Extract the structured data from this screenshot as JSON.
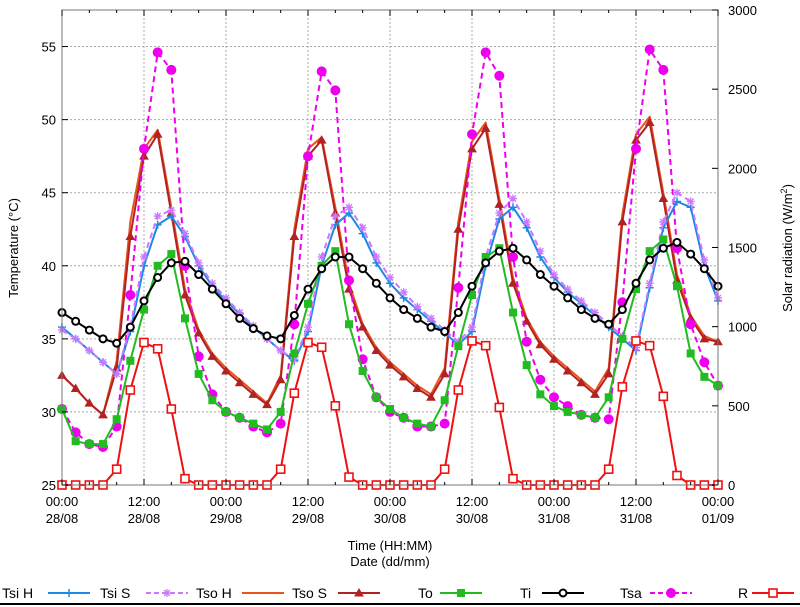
{
  "chart_data": {
    "type": "line",
    "title": "",
    "xlabel": "Time (HH:MM)\nDate (dd/mm)",
    "xlabel_lines": [
      "Time (HH:MM)",
      "Date (dd/mm)"
    ],
    "ylabel": "Temperature (°C)",
    "y2label": "Solar radiation (W/m²)",
    "ylim": [
      25,
      57.5
    ],
    "y2lim": [
      0,
      3000
    ],
    "yticks": [
      25,
      30,
      35,
      40,
      45,
      50,
      55
    ],
    "y2ticks": [
      0,
      500,
      1000,
      1500,
      2000,
      2500,
      3000
    ],
    "xticks": [
      {
        "hour": 0,
        "time": "00:00",
        "date": "28/08"
      },
      {
        "hour": 12,
        "time": "12:00",
        "date": "28/08"
      },
      {
        "hour": 24,
        "time": "00:00",
        "date": "29/08"
      },
      {
        "hour": 36,
        "time": "12:00",
        "date": "29/08"
      },
      {
        "hour": 48,
        "time": "00:00",
        "date": "30/08"
      },
      {
        "hour": 60,
        "time": "12:00",
        "date": "30/08"
      },
      {
        "hour": 72,
        "time": "00:00",
        "date": "31/08"
      },
      {
        "hour": 84,
        "time": "12:00",
        "date": "31/08"
      },
      {
        "hour": 96,
        "time": "00:00",
        "date": "01/09"
      }
    ],
    "grid": true,
    "legend_position": "bottom",
    "x_hours": [
      0,
      2,
      4,
      6,
      8,
      10,
      12,
      14,
      16,
      18,
      20,
      22,
      24,
      26,
      28,
      30,
      32,
      34,
      36,
      38,
      40,
      42,
      44,
      46,
      48,
      50,
      52,
      54,
      56,
      58,
      60,
      62,
      64,
      66,
      68,
      70,
      72,
      74,
      76,
      78,
      80,
      82,
      84,
      86,
      88,
      90,
      92,
      94,
      96
    ],
    "series": [
      {
        "name": "Tsi H",
        "axis": "left",
        "color": "#1e88e5",
        "dash": "solid",
        "marker": "plus",
        "values": [
          35.8,
          35.0,
          34.2,
          33.4,
          32.6,
          35.5,
          40.0,
          42.8,
          43.4,
          42.0,
          40.0,
          38.6,
          37.6,
          36.7,
          35.8,
          35.0,
          34.2,
          33.5,
          35.5,
          40.0,
          42.8,
          43.6,
          42.2,
          40.2,
          38.8,
          37.8,
          37.0,
          36.2,
          35.4,
          34.6,
          35.5,
          40.0,
          43.2,
          44.0,
          42.6,
          40.6,
          39.2,
          38.2,
          37.4,
          36.6,
          35.8,
          35.0,
          34.2,
          38.5,
          42.6,
          44.4,
          44.0,
          40.0,
          37.6
        ]
      },
      {
        "name": "Tsi S",
        "axis": "left",
        "color": "#cc77ff",
        "dash": "dashed",
        "marker": "star",
        "values": [
          35.6,
          35.0,
          34.2,
          33.4,
          32.6,
          35.8,
          40.6,
          43.4,
          43.8,
          42.2,
          40.2,
          38.8,
          37.8,
          36.8,
          35.9,
          35.0,
          34.2,
          33.6,
          35.8,
          40.6,
          43.4,
          44.0,
          42.6,
          40.6,
          39.2,
          38.2,
          37.2,
          36.4,
          35.6,
          34.8,
          35.8,
          40.6,
          43.6,
          44.6,
          43.0,
          41.0,
          39.4,
          38.4,
          37.6,
          36.8,
          36.0,
          35.2,
          34.4,
          38.8,
          43.0,
          45.0,
          44.4,
          40.4,
          37.8
        ]
      },
      {
        "name": "Tso H",
        "axis": "left",
        "color": "#e8531e",
        "dash": "solid",
        "marker": "none",
        "values": [
          32.5,
          31.6,
          30.6,
          29.8,
          33.5,
          43.0,
          48.0,
          49.3,
          44.0,
          38.4,
          35.6,
          34.0,
          33.0,
          32.2,
          31.4,
          30.6,
          32.5,
          42.5,
          48.0,
          48.8,
          44.0,
          38.8,
          36.0,
          34.4,
          33.4,
          32.6,
          31.8,
          31.2,
          33.0,
          43.0,
          48.5,
          49.8,
          44.6,
          39.2,
          36.4,
          34.8,
          33.8,
          33.0,
          32.2,
          31.4,
          33.0,
          43.5,
          49.0,
          50.2,
          45.0,
          39.4,
          36.6,
          35.2,
          34.8
        ]
      },
      {
        "name": "Tso S",
        "axis": "left",
        "color": "#b22222",
        "dash": "solid",
        "marker": "triangle",
        "values": [
          32.5,
          31.6,
          30.6,
          29.8,
          33.0,
          42.0,
          47.5,
          49.0,
          43.6,
          38.0,
          35.4,
          33.8,
          32.8,
          32.0,
          31.2,
          30.5,
          32.2,
          42.0,
          47.5,
          48.6,
          43.6,
          38.4,
          35.8,
          34.2,
          33.2,
          32.4,
          31.6,
          31.0,
          32.6,
          42.5,
          48.0,
          49.4,
          44.2,
          38.8,
          36.2,
          34.6,
          33.6,
          32.8,
          32.0,
          31.2,
          32.6,
          43.0,
          48.6,
          49.8,
          44.6,
          39.0,
          36.4,
          35.0,
          34.8
        ]
      },
      {
        "name": "To",
        "axis": "left",
        "color": "#22bb22",
        "dash": "solid",
        "marker": "square",
        "values": [
          30.2,
          28.0,
          27.8,
          27.8,
          29.5,
          33.5,
          37.0,
          40.0,
          40.8,
          36.4,
          32.6,
          30.8,
          30.0,
          29.6,
          29.2,
          28.8,
          30.0,
          34.0,
          37.4,
          40.0,
          41.0,
          36.0,
          32.8,
          31.0,
          30.2,
          29.6,
          29.2,
          29.0,
          30.8,
          34.5,
          38.0,
          40.6,
          41.2,
          36.8,
          33.2,
          31.2,
          30.4,
          30.0,
          29.8,
          29.6,
          31.0,
          35.0,
          38.4,
          41.0,
          41.8,
          38.6,
          34.0,
          32.4,
          31.8
        ]
      },
      {
        "name": "Ti",
        "axis": "left",
        "color": "#000000",
        "dash": "solid",
        "marker": "circle-open",
        "values": [
          36.8,
          36.2,
          35.6,
          35.0,
          34.7,
          35.8,
          37.6,
          39.2,
          40.2,
          40.3,
          39.4,
          38.4,
          37.4,
          36.4,
          35.7,
          35.2,
          35.0,
          36.6,
          38.4,
          39.8,
          40.6,
          40.6,
          39.8,
          38.8,
          37.8,
          37.0,
          36.4,
          35.8,
          35.5,
          36.8,
          38.6,
          40.2,
          41.0,
          41.2,
          40.4,
          39.4,
          38.6,
          37.8,
          37.0,
          36.4,
          36.0,
          37.0,
          38.8,
          40.4,
          41.2,
          41.6,
          40.8,
          39.8,
          38.6
        ]
      },
      {
        "name": "Tsa",
        "axis": "left",
        "color": "#ee00ee",
        "dash": "dashed",
        "marker": "circle-filled",
        "values": [
          30.2,
          28.6,
          27.8,
          27.6,
          29.0,
          38.0,
          48.0,
          54.6,
          53.4,
          40.0,
          33.8,
          31.2,
          30.0,
          29.6,
          29.0,
          28.6,
          29.2,
          36.0,
          47.5,
          53.3,
          52.0,
          39.0,
          33.6,
          31.0,
          30.0,
          29.6,
          29.0,
          29.0,
          29.2,
          38.5,
          49.0,
          54.6,
          53.0,
          40.6,
          34.8,
          32.2,
          31.0,
          30.4,
          29.8,
          29.6,
          29.5,
          37.5,
          48.0,
          54.8,
          53.4,
          41.2,
          36.0,
          33.4,
          31.8
        ]
      },
      {
        "name": "R",
        "axis": "right",
        "color": "#ee1111",
        "dash": "solid",
        "marker": "square-open",
        "values": [
          0,
          0,
          0,
          0,
          100,
          600,
          900,
          860,
          480,
          40,
          0,
          0,
          0,
          0,
          0,
          0,
          100,
          580,
          900,
          870,
          500,
          50,
          0,
          0,
          0,
          0,
          0,
          0,
          100,
          600,
          910,
          880,
          490,
          40,
          0,
          0,
          0,
          0,
          0,
          0,
          100,
          620,
          910,
          880,
          560,
          60,
          0,
          0,
          0
        ]
      }
    ],
    "legend": [
      {
        "name": "Tsi H",
        "color": "#1e88e5",
        "dash": "solid",
        "marker": "plus"
      },
      {
        "name": "Tsi S",
        "color": "#cc77ff",
        "dash": "dashed",
        "marker": "star"
      },
      {
        "name": "Tso H",
        "color": "#e8531e",
        "dash": "solid",
        "marker": "none"
      },
      {
        "name": "Tso S",
        "color": "#b22222",
        "dash": "solid",
        "marker": "triangle"
      },
      {
        "name": "To",
        "color": "#22bb22",
        "dash": "solid",
        "marker": "square"
      },
      {
        "name": "Ti",
        "color": "#000000",
        "dash": "solid",
        "marker": "circle-open"
      },
      {
        "name": "Tsa",
        "color": "#ee00ee",
        "dash": "dashed",
        "marker": "circle-filled"
      },
      {
        "name": "R",
        "color": "#ee1111",
        "dash": "solid",
        "marker": "square-open"
      }
    ]
  }
}
